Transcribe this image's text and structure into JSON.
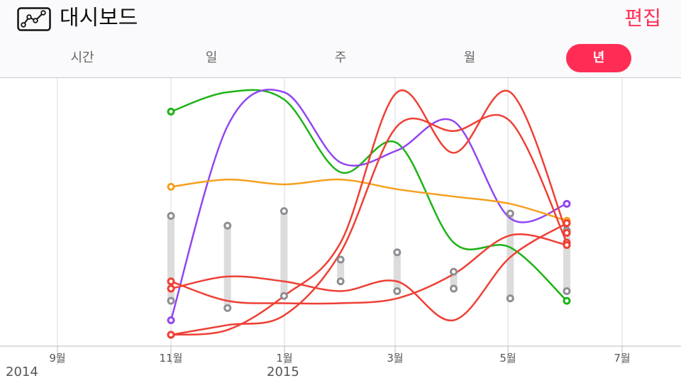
{
  "header": {
    "title": "대시보드",
    "icon": "line-chart-icon",
    "edit_label": "편집",
    "accent_color": "#ff2d55"
  },
  "segments": [
    {
      "label": "시간",
      "active": false
    },
    {
      "label": "일",
      "active": false
    },
    {
      "label": "주",
      "active": false
    },
    {
      "label": "월",
      "active": false
    },
    {
      "label": "년",
      "active": true
    }
  ],
  "chart_data": {
    "type": "line",
    "x_axis": {
      "ticks": [
        "9월",
        "11월",
        "1월",
        "3월",
        "5월",
        "7월"
      ],
      "year_labels": [
        "2014",
        "2015"
      ]
    },
    "grid": "vertical",
    "series": [
      {
        "color": "#1db316",
        "values": [
          [
            0,
            0.92
          ],
          [
            0.5,
            1.0
          ],
          [
            1,
            0.97
          ],
          [
            1.5,
            0.67
          ],
          [
            2,
            0.79
          ],
          [
            2.5,
            0.38
          ],
          [
            3,
            0.36
          ],
          [
            3.5,
            0.14
          ]
        ]
      },
      {
        "color": "#9146f0",
        "values": [
          [
            0,
            0.06
          ],
          [
            0.5,
            0.86
          ],
          [
            1,
            1.0
          ],
          [
            1.5,
            0.71
          ],
          [
            2,
            0.76
          ],
          [
            2.5,
            0.88
          ],
          [
            3,
            0.48
          ],
          [
            3.5,
            0.54
          ]
        ]
      },
      {
        "color": "#f5a01e",
        "values": [
          [
            0,
            0.61
          ],
          [
            0.5,
            0.64
          ],
          [
            1,
            0.62
          ],
          [
            1.5,
            0.64
          ],
          [
            2,
            0.6
          ],
          [
            2.5,
            0.57
          ],
          [
            3,
            0.54
          ],
          [
            3.5,
            0.47
          ]
        ]
      },
      {
        "color": "#ee4035",
        "values": [
          [
            0,
            0.19
          ],
          [
            0.5,
            0.24
          ],
          [
            1,
            0.22
          ],
          [
            1.5,
            0.18
          ],
          [
            2,
            0.22
          ],
          [
            2.5,
            0.06
          ],
          [
            3,
            0.32
          ],
          [
            3.5,
            0.46
          ]
        ]
      },
      {
        "color": "#ee4035",
        "values": [
          [
            0,
            0.0
          ],
          [
            0.5,
            0.02
          ],
          [
            1,
            0.16
          ],
          [
            1.5,
            0.38
          ],
          [
            2,
            1.0
          ],
          [
            2.5,
            0.75
          ],
          [
            3,
            1.0
          ],
          [
            3.5,
            0.42
          ]
        ]
      },
      {
        "color": "#ee4035",
        "values": [
          [
            0,
            0.0
          ],
          [
            0.5,
            0.04
          ],
          [
            1,
            0.08
          ],
          [
            1.5,
            0.34
          ],
          [
            2,
            0.86
          ],
          [
            2.5,
            0.84
          ],
          [
            3,
            0.88
          ],
          [
            3.5,
            0.38
          ]
        ]
      },
      {
        "color": "#ee4035",
        "values": [
          [
            0,
            0.22
          ],
          [
            0.5,
            0.14
          ],
          [
            1,
            0.13
          ],
          [
            1.5,
            0.13
          ],
          [
            2,
            0.15
          ],
          [
            2.5,
            0.25
          ],
          [
            3,
            0.41
          ],
          [
            3.5,
            0.37
          ]
        ]
      }
    ],
    "range_bars": [
      {
        "x": 0,
        "low": 0.14,
        "high": 0.49
      },
      {
        "x": 0.5,
        "low": 0.11,
        "high": 0.45
      },
      {
        "x": 1,
        "low": 0.16,
        "high": 0.51
      },
      {
        "x": 1.5,
        "low": 0.22,
        "high": 0.31
      },
      {
        "x": 2,
        "low": 0.18,
        "high": 0.34
      },
      {
        "x": 2.5,
        "low": 0.19,
        "high": 0.26
      },
      {
        "x": 3,
        "low": 0.15,
        "high": 0.5
      },
      {
        "x": 3.5,
        "low": 0.18,
        "high": 0.43
      }
    ]
  }
}
